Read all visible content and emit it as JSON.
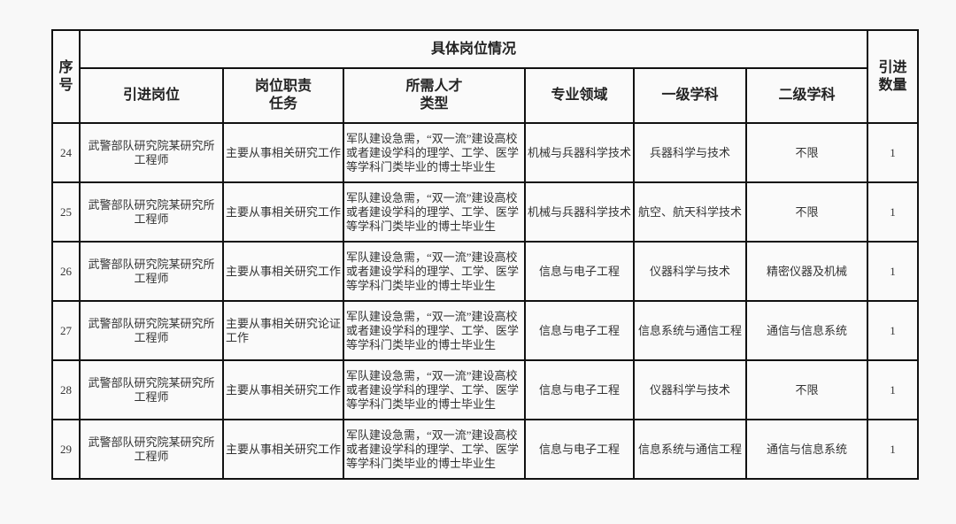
{
  "header": {
    "seq": "序号",
    "group": "具体岗位情况",
    "count": "引进数量",
    "columns": [
      "引进岗位",
      "岗位职责任务",
      "所需人才类型",
      "专业领域",
      "一级学科",
      "二级学科"
    ]
  },
  "header_lines": {
    "seq": [
      "序",
      "号"
    ],
    "count": [
      "引进",
      "数量"
    ],
    "duty": [
      "岗位职责",
      "任务"
    ],
    "talent": [
      "所需人才",
      "类型"
    ]
  },
  "rows": [
    {
      "no": "24",
      "position": [
        "武警部队研究院某研究所",
        "工程师"
      ],
      "duty": "主要从事相关研究工作",
      "talent": "军队建设急需，“双一流”建设高校或者建设学科的理学、工学、医学等学科门类毕业的博士毕业生",
      "field": "机械与兵器科学技术",
      "first": "兵器科学与技术",
      "second": "不限",
      "count": "1"
    },
    {
      "no": "25",
      "position": [
        "武警部队研究院某研究所",
        "工程师"
      ],
      "duty": "主要从事相关研究工作",
      "talent": "军队建设急需，“双一流”建设高校或者建设学科的理学、工学、医学等学科门类毕业的博士毕业生",
      "field": "机械与兵器科学技术",
      "first": "航空、航天科学技术",
      "second": "不限",
      "count": "1"
    },
    {
      "no": "26",
      "position": [
        "武警部队研究院某研究所",
        "工程师"
      ],
      "duty": "主要从事相关研究工作",
      "talent": "军队建设急需，“双一流”建设高校或者建设学科的理学、工学、医学等学科门类毕业的博士毕业生",
      "field": "信息与电子工程",
      "first": "仪器科学与技术",
      "second": "精密仪器及机械",
      "count": "1"
    },
    {
      "no": "27",
      "position": [
        "武警部队研究院某研究所",
        "工程师"
      ],
      "duty": "主要从事相关研究论证工作",
      "talent": "军队建设急需，“双一流”建设高校或者建设学科的理学、工学、医学等学科门类毕业的博士毕业生",
      "field": "信息与电子工程",
      "first": "信息系统与通信工程",
      "second": "通信与信息系统",
      "count": "1"
    },
    {
      "no": "28",
      "position": [
        "武警部队研究院某研究所",
        "工程师"
      ],
      "duty": "主要从事相关研究工作",
      "talent": "军队建设急需，“双一流”建设高校或者建设学科的理学、工学、医学等学科门类毕业的博士毕业生",
      "field": "信息与电子工程",
      "first": "仪器科学与技术",
      "second": "不限",
      "count": "1"
    },
    {
      "no": "29",
      "position": [
        "武警部队研究院某研究所",
        "工程师"
      ],
      "duty": "主要从事相关研究工作",
      "talent": "军队建设急需，“双一流”建设高校或者建设学科的理学、工学、医学等学科门类毕业的博士毕业生",
      "field": "信息与电子工程",
      "first": "信息系统与通信工程",
      "second": "通信与信息系统",
      "count": "1"
    }
  ]
}
